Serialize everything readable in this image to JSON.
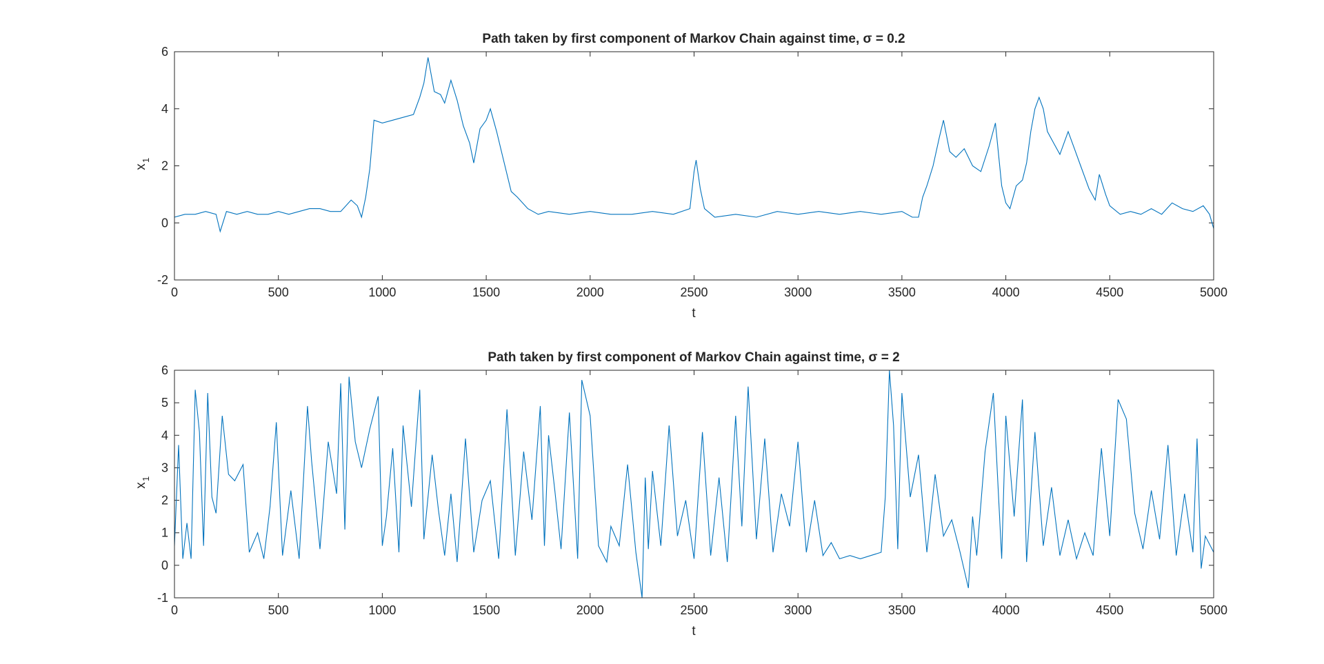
{
  "chart_data": [
    {
      "type": "line",
      "title": "Path taken by first component of Markov Chain against time, σ = 0.2",
      "xlabel": "t",
      "ylabel": "x",
      "ylabel_subscript": "1",
      "xlim": [
        0,
        5000
      ],
      "ylim": [
        -2,
        6
      ],
      "xticks": [
        "0",
        "500",
        "1000",
        "1500",
        "2000",
        "2500",
        "3000",
        "3500",
        "4000",
        "4500",
        "5000"
      ],
      "yticks": [
        "-2",
        "0",
        "2",
        "4",
        "6"
      ],
      "grid": false,
      "line_color": "#0072BD",
      "x": [
        0,
        50,
        100,
        150,
        200,
        220,
        250,
        300,
        350,
        400,
        450,
        500,
        550,
        600,
        650,
        700,
        750,
        800,
        850,
        880,
        900,
        920,
        940,
        960,
        1000,
        1050,
        1100,
        1150,
        1180,
        1200,
        1220,
        1250,
        1280,
        1300,
        1330,
        1360,
        1390,
        1420,
        1440,
        1470,
        1500,
        1520,
        1550,
        1580,
        1620,
        1650,
        1700,
        1750,
        1800,
        1900,
        2000,
        2100,
        2200,
        2300,
        2400,
        2480,
        2500,
        2510,
        2530,
        2550,
        2600,
        2700,
        2800,
        2900,
        3000,
        3100,
        3200,
        3300,
        3400,
        3500,
        3550,
        3580,
        3600,
        3620,
        3650,
        3680,
        3700,
        3730,
        3760,
        3800,
        3840,
        3880,
        3920,
        3950,
        3980,
        4000,
        4020,
        4050,
        4080,
        4100,
        4120,
        4140,
        4160,
        4180,
        4200,
        4230,
        4260,
        4300,
        4330,
        4360,
        4400,
        4430,
        4450,
        4480,
        4500,
        4550,
        4600,
        4650,
        4700,
        4750,
        4800,
        4850,
        4900,
        4950,
        4980,
        5000
      ],
      "y": [
        0.2,
        0.3,
        0.3,
        0.4,
        0.3,
        -0.3,
        0.4,
        0.3,
        0.4,
        0.3,
        0.3,
        0.4,
        0.3,
        0.4,
        0.5,
        0.5,
        0.4,
        0.4,
        0.8,
        0.6,
        0.2,
        0.9,
        1.9,
        3.6,
        3.5,
        3.6,
        3.7,
        3.8,
        4.4,
        4.9,
        5.8,
        4.6,
        4.5,
        4.2,
        5.0,
        4.3,
        3.4,
        2.8,
        2.1,
        3.3,
        3.6,
        4.0,
        3.2,
        2.3,
        1.1,
        0.9,
        0.5,
        0.3,
        0.4,
        0.3,
        0.4,
        0.3,
        0.3,
        0.4,
        0.3,
        0.5,
        1.8,
        2.2,
        1.2,
        0.5,
        0.2,
        0.3,
        0.2,
        0.4,
        0.3,
        0.4,
        0.3,
        0.4,
        0.3,
        0.4,
        0.2,
        0.2,
        0.9,
        1.3,
        2.0,
        3.0,
        3.6,
        2.5,
        2.3,
        2.6,
        2.0,
        1.8,
        2.7,
        3.5,
        1.3,
        0.7,
        0.5,
        1.3,
        1.5,
        2.1,
        3.2,
        4.0,
        4.4,
        4.0,
        3.2,
        2.8,
        2.4,
        3.2,
        2.6,
        2.0,
        1.2,
        0.8,
        1.7,
        1.0,
        0.6,
        0.3,
        0.4,
        0.3,
        0.5,
        0.3,
        0.7,
        0.5,
        0.4,
        0.6,
        0.3,
        -0.2
      ]
    },
    {
      "type": "line",
      "title": "Path taken by first component of Markov Chain against time, σ = 2",
      "xlabel": "t",
      "ylabel": "x",
      "ylabel_subscript": "1",
      "xlim": [
        0,
        5000
      ],
      "ylim": [
        -1,
        6
      ],
      "xticks": [
        "0",
        "500",
        "1000",
        "1500",
        "2000",
        "2500",
        "3000",
        "3500",
        "4000",
        "4500",
        "5000"
      ],
      "yticks": [
        "-1",
        "0",
        "1",
        "2",
        "3",
        "4",
        "5",
        "6"
      ],
      "grid": false,
      "line_color": "#0072BD",
      "x": [
        0,
        20,
        40,
        60,
        80,
        100,
        120,
        140,
        160,
        180,
        200,
        230,
        260,
        290,
        330,
        360,
        400,
        430,
        460,
        490,
        520,
        560,
        600,
        640,
        660,
        700,
        740,
        780,
        800,
        820,
        840,
        870,
        900,
        940,
        980,
        1000,
        1020,
        1050,
        1080,
        1100,
        1140,
        1180,
        1200,
        1240,
        1270,
        1300,
        1330,
        1360,
        1400,
        1440,
        1480,
        1520,
        1560,
        1600,
        1640,
        1680,
        1720,
        1760,
        1780,
        1800,
        1830,
        1860,
        1900,
        1940,
        1960,
        2000,
        2040,
        2080,
        2100,
        2140,
        2180,
        2220,
        2250,
        2265,
        2280,
        2300,
        2340,
        2380,
        2420,
        2460,
        2500,
        2540,
        2580,
        2620,
        2660,
        2700,
        2730,
        2760,
        2800,
        2840,
        2880,
        2920,
        2960,
        3000,
        3040,
        3080,
        3120,
        3160,
        3200,
        3250,
        3300,
        3350,
        3400,
        3420,
        3440,
        3460,
        3480,
        3500,
        3540,
        3580,
        3620,
        3660,
        3700,
        3740,
        3780,
        3820,
        3840,
        3860,
        3900,
        3940,
        3980,
        4000,
        4040,
        4080,
        4100,
        4140,
        4180,
        4220,
        4260,
        4300,
        4340,
        4380,
        4420,
        4460,
        4500,
        4540,
        4580,
        4620,
        4660,
        4700,
        4740,
        4780,
        4820,
        4860,
        4900,
        4920,
        4940,
        4960,
        5000
      ],
      "y": [
        0.6,
        3.7,
        0.2,
        1.3,
        0.2,
        5.4,
        4.1,
        0.6,
        5.3,
        2.1,
        1.6,
        4.6,
        2.8,
        2.6,
        3.1,
        0.4,
        1.0,
        0.2,
        1.8,
        4.4,
        0.3,
        2.3,
        0.2,
        4.9,
        3.2,
        0.5,
        3.8,
        2.2,
        5.6,
        1.1,
        5.8,
        3.8,
        3.0,
        4.2,
        5.2,
        0.6,
        1.5,
        3.6,
        0.4,
        4.3,
        1.8,
        5.4,
        0.8,
        3.4,
        1.7,
        0.3,
        2.2,
        0.1,
        3.9,
        0.4,
        2.0,
        2.6,
        0.2,
        4.8,
        0.3,
        3.5,
        1.4,
        4.9,
        0.6,
        4.0,
        2.3,
        0.5,
        4.7,
        0.2,
        5.7,
        4.6,
        0.6,
        0.1,
        1.2,
        0.6,
        3.1,
        0.4,
        -1.0,
        2.7,
        0.5,
        2.9,
        0.6,
        4.3,
        0.9,
        2.0,
        0.2,
        4.1,
        0.3,
        2.7,
        0.1,
        4.6,
        1.2,
        5.5,
        0.8,
        3.9,
        0.4,
        2.2,
        1.2,
        3.8,
        0.4,
        2.0,
        0.3,
        0.7,
        0.2,
        0.3,
        0.2,
        0.3,
        0.4,
        2.1,
        6.0,
        4.3,
        0.5,
        5.3,
        2.1,
        3.4,
        0.4,
        2.8,
        0.9,
        1.4,
        0.4,
        -0.7,
        1.5,
        0.3,
        3.5,
        5.3,
        0.2,
        4.6,
        1.5,
        5.1,
        0.1,
        4.1,
        0.6,
        2.4,
        0.3,
        1.4,
        0.2,
        1.0,
        0.3,
        3.6,
        0.9,
        5.1,
        4.5,
        1.6,
        0.5,
        2.3,
        0.8,
        3.7,
        0.3,
        2.2,
        0.4,
        3.9,
        -0.1,
        0.9,
        0.4
      ]
    }
  ]
}
